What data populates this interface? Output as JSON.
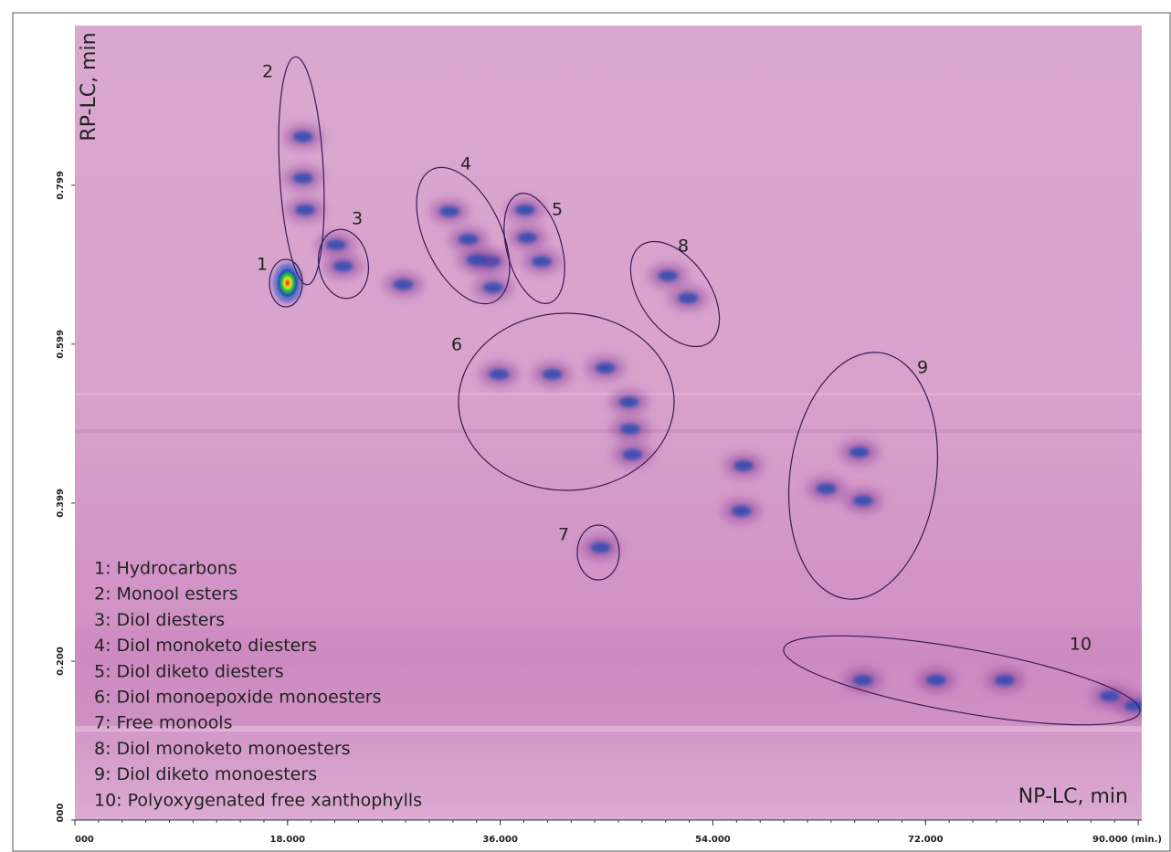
{
  "chart_data": {
    "type": "contour2d",
    "x_label": "NP-LC, min",
    "y_label": "RP-LC, min",
    "xlim": [
      0,
      90.3
    ],
    "ylim": [
      0,
      1.0
    ],
    "xticks": [
      {
        "value": 0,
        "label": "000"
      },
      {
        "value": 18,
        "label": "18.000"
      },
      {
        "value": 36,
        "label": "36.000"
      },
      {
        "value": 54,
        "label": "54.000"
      },
      {
        "value": 72,
        "label": "72.000"
      },
      {
        "value": 90,
        "label": "90.000 (min.)"
      }
    ],
    "yticks": [
      {
        "value": 0,
        "label": "000"
      },
      {
        "value": 0.2,
        "label": "0.200"
      },
      {
        "value": 0.399,
        "label": "0.399"
      },
      {
        "value": 0.599,
        "label": "0.599"
      },
      {
        "value": 0.799,
        "label": "0.799"
      }
    ],
    "background": "#d9a6cf",
    "apex": {
      "x": 18.0,
      "y": 0.676,
      "color": "#e02020"
    },
    "peaks": {
      "color": "#2a48b0",
      "x": [
        19.3,
        19.3,
        19.5,
        22.1,
        22.7,
        31.7,
        33.3,
        35.2,
        35.4,
        34.0,
        38.3,
        39.5,
        38.1,
        51.9,
        50.2,
        35.9,
        40.4,
        44.9,
        47.2,
        47.0,
        46.9,
        44.5,
        66.7,
        66.4,
        63.6,
        66.7,
        72.9,
        78.7,
        87.6,
        89.7,
        27.8,
        56.6,
        56.4
      ],
      "y": [
        0.86,
        0.808,
        0.768,
        0.724,
        0.697,
        0.766,
        0.731,
        0.703,
        0.67,
        0.705,
        0.733,
        0.703,
        0.768,
        0.657,
        0.685,
        0.561,
        0.561,
        0.569,
        0.46,
        0.492,
        0.526,
        0.343,
        0.402,
        0.463,
        0.417,
        0.176,
        0.176,
        0.176,
        0.156,
        0.144,
        0.674,
        0.446,
        0.389
      ]
    },
    "regions": [
      "1",
      "2",
      "3",
      "4",
      "5",
      "6",
      "7",
      "8",
      "9",
      "10"
    ],
    "notes": [
      "1: Hydrocarbons",
      "2: Monool esters",
      "3: Diol diesters",
      "4: Diol monoketo diesters",
      "5: Diol diketo diesters",
      "6: Diol monoepoxide monoesters",
      "7: Free monools",
      "8: Diol monoketo monoesters",
      "9: Diol diketo monoesters",
      "10: Polyoxygenated free xanthophylls"
    ]
  }
}
